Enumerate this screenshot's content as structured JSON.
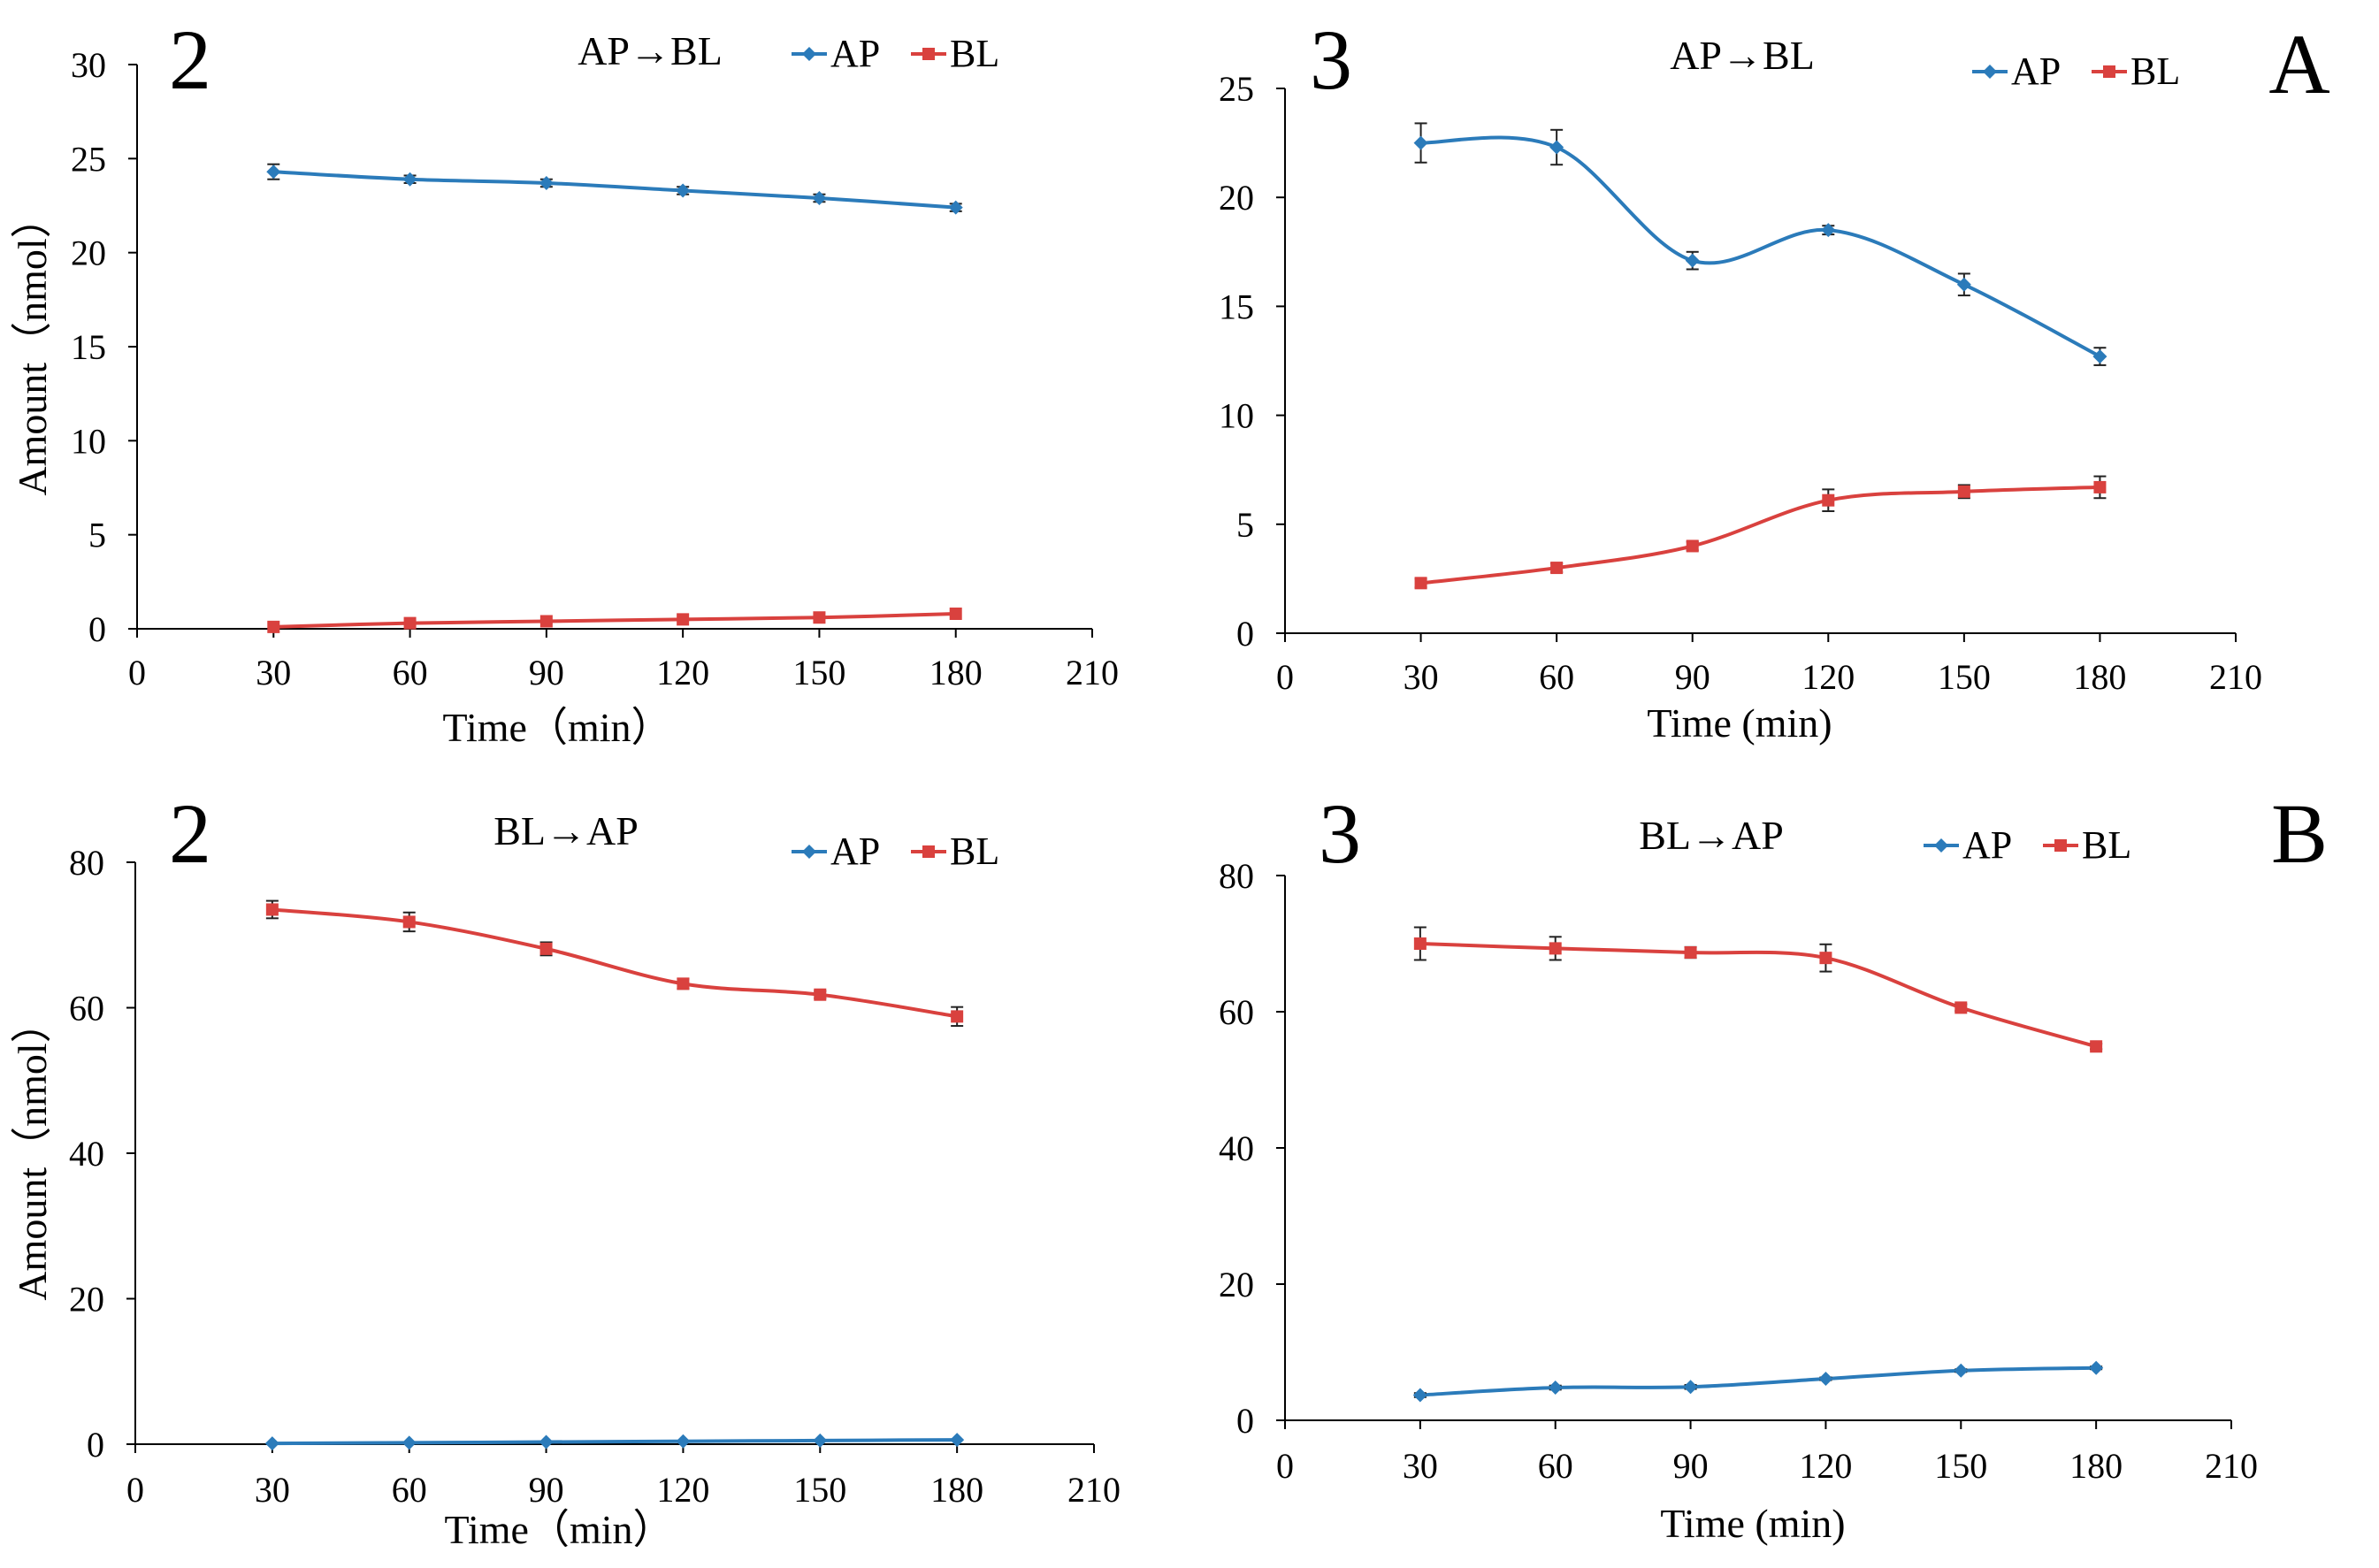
{
  "figure": {
    "panel_letters": [
      "A",
      "B"
    ]
  },
  "colors": {
    "AP": "#2B7BBA",
    "BL": "#D9413E",
    "axis": "#000000"
  },
  "chart_data": [
    {
      "id": "A2",
      "type": "line",
      "number_label": "2",
      "title": "AP→BL",
      "xlabel": "Time（min）",
      "ylabel": "Amount（nmol）",
      "xlim": [
        0,
        210
      ],
      "ylim": [
        0,
        30
      ],
      "xticks": [
        0,
        30,
        60,
        90,
        120,
        150,
        180,
        210
      ],
      "yticks": [
        0,
        5,
        10,
        15,
        20,
        25,
        30
      ],
      "x": [
        30,
        60,
        90,
        120,
        150,
        180
      ],
      "series": [
        {
          "name": "AP",
          "values": [
            24.3,
            23.9,
            23.7,
            23.3,
            22.9,
            22.4
          ],
          "errors": [
            0.4,
            0.2,
            0.2,
            0.2,
            0.2,
            0.2
          ]
        },
        {
          "name": "BL",
          "values": [
            0.1,
            0.3,
            0.4,
            0.5,
            0.6,
            0.8
          ],
          "errors": [
            0.05,
            0.05,
            0.05,
            0.05,
            0.05,
            0.05
          ]
        }
      ]
    },
    {
      "id": "A3",
      "type": "line",
      "number_label": "3",
      "title": "AP→BL",
      "xlabel": "Time (min)",
      "ylabel": "",
      "xlim": [
        0,
        210
      ],
      "ylim": [
        0,
        25
      ],
      "xticks": [
        0,
        30,
        60,
        90,
        120,
        150,
        180,
        210
      ],
      "yticks": [
        0,
        5,
        10,
        15,
        20,
        25
      ],
      "x": [
        30,
        60,
        90,
        120,
        150,
        180
      ],
      "series": [
        {
          "name": "AP",
          "values": [
            22.5,
            22.3,
            17.1,
            18.5,
            16.0,
            12.7
          ],
          "errors": [
            0.9,
            0.8,
            0.4,
            0.2,
            0.5,
            0.4
          ]
        },
        {
          "name": "BL",
          "values": [
            2.3,
            3.0,
            4.0,
            6.1,
            6.5,
            6.7
          ],
          "errors": [
            0.2,
            0.2,
            0.2,
            0.5,
            0.3,
            0.5
          ]
        }
      ]
    },
    {
      "id": "B2",
      "type": "line",
      "number_label": "2",
      "title": "BL→AP",
      "xlabel": "Time（min）",
      "ylabel": "Amount（nmol）",
      "xlim": [
        0,
        210
      ],
      "ylim": [
        0,
        80
      ],
      "xticks": [
        0,
        30,
        60,
        90,
        120,
        150,
        180,
        210
      ],
      "yticks": [
        0,
        20,
        40,
        60,
        80
      ],
      "x": [
        30,
        60,
        90,
        120,
        150,
        180
      ],
      "series": [
        {
          "name": "AP",
          "values": [
            0.1,
            0.2,
            0.3,
            0.4,
            0.5,
            0.6
          ],
          "errors": [
            0.1,
            0.1,
            0.1,
            0.1,
            0.1,
            0.1
          ]
        },
        {
          "name": "BL",
          "values": [
            73.5,
            71.8,
            68.1,
            63.3,
            61.8,
            58.8
          ],
          "errors": [
            1.2,
            1.3,
            0.9,
            0.7,
            0.5,
            1.3
          ]
        }
      ]
    },
    {
      "id": "B3",
      "type": "line",
      "number_label": "3",
      "title": "BL→AP",
      "xlabel": "Time (min)",
      "ylabel": "",
      "xlim": [
        0,
        210
      ],
      "ylim": [
        0,
        80
      ],
      "xticks": [
        0,
        30,
        60,
        90,
        120,
        150,
        180,
        210
      ],
      "yticks": [
        0,
        20,
        40,
        60,
        80
      ],
      "x": [
        30,
        60,
        90,
        120,
        150,
        180
      ],
      "series": [
        {
          "name": "AP",
          "values": [
            3.7,
            4.8,
            4.9,
            6.1,
            7.3,
            7.7
          ],
          "errors": [
            0.3,
            0.3,
            0.3,
            0.2,
            0.2,
            0.2
          ]
        },
        {
          "name": "BL",
          "values": [
            70.0,
            69.3,
            68.7,
            67.9,
            60.6,
            54.9
          ],
          "errors": [
            2.4,
            1.7,
            0.8,
            2.0,
            0.5,
            0.4
          ]
        }
      ]
    }
  ]
}
